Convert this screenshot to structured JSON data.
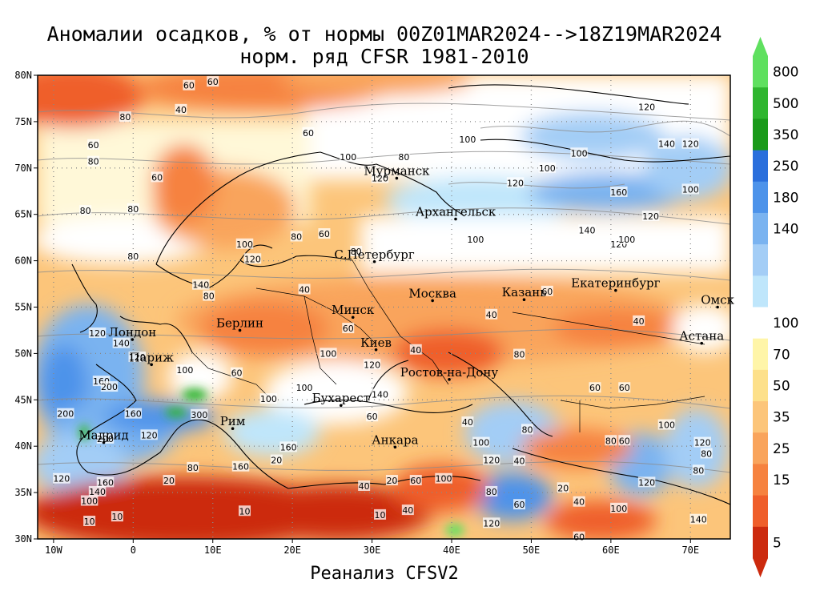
{
  "title": {
    "line1": "Аномалии осадков, % от нормы 00Z01MAR2024-->18Z19MAR2024",
    "line2": "норм. ряд CFSR 1981-2010"
  },
  "footer": "Реанализ CFSV2",
  "axes": {
    "lat_range": [
      30,
      80
    ],
    "lon_range": [
      -12,
      75
    ],
    "lat_ticks": [
      {
        "value": 30,
        "label": "30N"
      },
      {
        "value": 35,
        "label": "35N"
      },
      {
        "value": 40,
        "label": "40N"
      },
      {
        "value": 45,
        "label": "45N"
      },
      {
        "value": 50,
        "label": "50N"
      },
      {
        "value": 55,
        "label": "55N"
      },
      {
        "value": 60,
        "label": "60N"
      },
      {
        "value": 65,
        "label": "65N"
      },
      {
        "value": 70,
        "label": "70N"
      },
      {
        "value": 75,
        "label": "75N"
      },
      {
        "value": 80,
        "label": "80N"
      }
    ],
    "lon_ticks": [
      {
        "value": -10,
        "label": "10W"
      },
      {
        "value": 0,
        "label": "0"
      },
      {
        "value": 10,
        "label": "10E"
      },
      {
        "value": 20,
        "label": "20E"
      },
      {
        "value": 30,
        "label": "30E"
      },
      {
        "value": 40,
        "label": "40E"
      },
      {
        "value": 50,
        "label": "50E"
      },
      {
        "value": 60,
        "label": "60E"
      },
      {
        "value": 70,
        "label": "70E"
      }
    ],
    "grid": true
  },
  "colorbar": {
    "levels": [
      {
        "label": "800",
        "color": "#5fe05f"
      },
      {
        "label": "500",
        "color": "#2fb62f"
      },
      {
        "label": "350",
        "color": "#1a9a1a"
      },
      {
        "label": "250",
        "color": "#2a6fdc"
      },
      {
        "label": "180",
        "color": "#4d93ea"
      },
      {
        "label": "140",
        "color": "#7ab3f0"
      },
      {
        "label": "",
        "color": "#a3cdf6"
      },
      {
        "label": "",
        "color": "#bfe6fb"
      },
      {
        "label": "100",
        "color": "#ffffff"
      },
      {
        "label": "70",
        "color": "#fff5a8"
      },
      {
        "label": "50",
        "color": "#fde08a"
      },
      {
        "label": "35",
        "color": "#fcc57a"
      },
      {
        "label": "25",
        "color": "#f9a45c"
      },
      {
        "label": "15",
        "color": "#f6823f"
      },
      {
        "label": "",
        "color": "#ef5e2a"
      },
      {
        "label": "5",
        "color": "#cc2a0e"
      }
    ]
  },
  "cities": [
    {
      "name": "Мурманск",
      "lon": 33.1,
      "lat": 68.9
    },
    {
      "name": "Архангельск",
      "lon": 40.5,
      "lat": 64.5
    },
    {
      "name": "С.Петербург",
      "lon": 30.3,
      "lat": 59.9
    },
    {
      "name": "Москва",
      "lon": 37.6,
      "lat": 55.7
    },
    {
      "name": "Казань",
      "lon": 49.1,
      "lat": 55.8
    },
    {
      "name": "Екатеринбург",
      "lon": 60.6,
      "lat": 56.8
    },
    {
      "name": "Минск",
      "lon": 27.6,
      "lat": 53.9
    },
    {
      "name": "Киев",
      "lon": 30.5,
      "lat": 50.4
    },
    {
      "name": "Берлин",
      "lon": 13.4,
      "lat": 52.5
    },
    {
      "name": "Лондон",
      "lon": -0.1,
      "lat": 51.5
    },
    {
      "name": "Париж",
      "lon": 2.3,
      "lat": 48.8
    },
    {
      "name": "Мадрид",
      "lon": -3.7,
      "lat": 40.4
    },
    {
      "name": "Рим",
      "lon": 12.5,
      "lat": 41.9
    },
    {
      "name": "Бухарест",
      "lon": 26.1,
      "lat": 44.4
    },
    {
      "name": "Ростов-на-Дону",
      "lon": 39.7,
      "lat": 47.2
    },
    {
      "name": "Анкара",
      "lon": 32.9,
      "lat": 39.9
    },
    {
      "name": "Омск",
      "lon": 73.4,
      "lat": 55.0
    },
    {
      "name": "Астана",
      "lon": 71.4,
      "lat": 51.1
    }
  ],
  "contour_labels": [
    {
      "value": "60",
      "lon": 7,
      "lat": 78.9
    },
    {
      "value": "40",
      "lon": 6,
      "lat": 76.3
    },
    {
      "value": "80",
      "lon": -1,
      "lat": 75.5
    },
    {
      "value": "60",
      "lon": -5,
      "lat": 72.5
    },
    {
      "value": "80",
      "lon": -5,
      "lat": 70.7
    },
    {
      "value": "60",
      "lon": 3,
      "lat": 69
    },
    {
      "value": "80",
      "lon": -6,
      "lat": 65.4
    },
    {
      "value": "80",
      "lon": 0,
      "lat": 65.6
    },
    {
      "value": "60",
      "lon": 10,
      "lat": 79.3
    },
    {
      "value": "60",
      "lon": 22,
      "lat": 73.8
    },
    {
      "value": "100",
      "lon": 27,
      "lat": 71.2
    },
    {
      "value": "80",
      "lon": 34,
      "lat": 71.2
    },
    {
      "value": "120",
      "lon": 31,
      "lat": 68.9
    },
    {
      "value": "100",
      "lon": 42,
      "lat": 73.1
    },
    {
      "value": "100",
      "lon": 52,
      "lat": 70.0
    },
    {
      "value": "120",
      "lon": 48,
      "lat": 68.4
    },
    {
      "value": "100",
      "lon": 56,
      "lat": 71.6
    },
    {
      "value": "120",
      "lon": 64.5,
      "lat": 76.6
    },
    {
      "value": "140",
      "lon": 67,
      "lat": 72.6
    },
    {
      "value": "120",
      "lon": 70,
      "lat": 72.6
    },
    {
      "value": "160",
      "lon": 61,
      "lat": 67.4
    },
    {
      "value": "120",
      "lon": 65,
      "lat": 64.8
    },
    {
      "value": "100",
      "lon": 70,
      "lat": 67.7
    },
    {
      "value": "140",
      "lon": 57,
      "lat": 63.3
    },
    {
      "value": "100",
      "lon": 43,
      "lat": 62.3
    },
    {
      "value": "120",
      "lon": 61,
      "lat": 61.8
    },
    {
      "value": "100",
      "lon": 62,
      "lat": 62.3
    },
    {
      "value": "80",
      "lon": 20.5,
      "lat": 62.6
    },
    {
      "value": "60",
      "lon": 24,
      "lat": 62.9
    },
    {
      "value": "100",
      "lon": 14,
      "lat": 61.8
    },
    {
      "value": "120",
      "lon": 15,
      "lat": 60.2
    },
    {
      "value": "80",
      "lon": 0,
      "lat": 60.5
    },
    {
      "value": "80",
      "lon": 28,
      "lat": 61.0
    },
    {
      "value": "40",
      "lon": 21.5,
      "lat": 56.9
    },
    {
      "value": "140",
      "lon": 8.5,
      "lat": 57.4
    },
    {
      "value": "80",
      "lon": 9.5,
      "lat": 56.2
    },
    {
      "value": "60",
      "lon": 52,
      "lat": 56.7
    },
    {
      "value": "40",
      "lon": 45,
      "lat": 54.2
    },
    {
      "value": "40",
      "lon": 63.5,
      "lat": 53.5
    },
    {
      "value": "60",
      "lon": 27,
      "lat": 52.7
    },
    {
      "value": "40",
      "lon": 35.5,
      "lat": 50.4
    },
    {
      "value": "100",
      "lon": 24.5,
      "lat": 50.0
    },
    {
      "value": "120",
      "lon": 30,
      "lat": 48.8
    },
    {
      "value": "80",
      "lon": 48.5,
      "lat": 49.9
    },
    {
      "value": "60",
      "lon": 58,
      "lat": 46.3
    },
    {
      "value": "60",
      "lon": 61.7,
      "lat": 46.3
    },
    {
      "value": "120",
      "lon": 0.5,
      "lat": 49.6
    },
    {
      "value": "140",
      "lon": -1.5,
      "lat": 51.1
    },
    {
      "value": "120",
      "lon": -4.5,
      "lat": 52.2
    },
    {
      "value": "100",
      "lon": 6.5,
      "lat": 48.2
    },
    {
      "value": "60",
      "lon": 13,
      "lat": 47.9
    },
    {
      "value": "160",
      "lon": -4,
      "lat": 47.0
    },
    {
      "value": "200",
      "lon": -3,
      "lat": 46.4
    },
    {
      "value": "200",
      "lon": -8.5,
      "lat": 43.5
    },
    {
      "value": "160",
      "lon": 0,
      "lat": 43.5
    },
    {
      "value": "300",
      "lon": 8.3,
      "lat": 43.4
    },
    {
      "value": "100",
      "lon": 17,
      "lat": 45.1
    },
    {
      "value": "100",
      "lon": 21.5,
      "lat": 46.3
    },
    {
      "value": "140",
      "lon": 31,
      "lat": 45.6
    },
    {
      "value": "60",
      "lon": 30,
      "lat": 43.2
    },
    {
      "value": "120",
      "lon": 2,
      "lat": 41.2
    },
    {
      "value": "200",
      "lon": -3.5,
      "lat": 40.8
    },
    {
      "value": "160",
      "lon": 19.5,
      "lat": 39.9
    },
    {
      "value": "20",
      "lon": 18,
      "lat": 38.5
    },
    {
      "value": "160",
      "lon": 13.5,
      "lat": 37.8
    },
    {
      "value": "80",
      "lon": 7.5,
      "lat": 37.7
    },
    {
      "value": "120",
      "lon": -9,
      "lat": 36.5
    },
    {
      "value": "160",
      "lon": -3.5,
      "lat": 36.1
    },
    {
      "value": "20",
      "lon": 4.5,
      "lat": 36.3
    },
    {
      "value": "140",
      "lon": -4.5,
      "lat": 35.1
    },
    {
      "value": "100",
      "lon": -5.5,
      "lat": 34.1
    },
    {
      "value": "40",
      "lon": 29,
      "lat": 35.7
    },
    {
      "value": "20",
      "lon": 32.5,
      "lat": 36.3
    },
    {
      "value": "60",
      "lon": 35.5,
      "lat": 36.3
    },
    {
      "value": "100",
      "lon": 39,
      "lat": 36.5
    },
    {
      "value": "40",
      "lon": 42,
      "lat": 42.6
    },
    {
      "value": "100",
      "lon": 43.7,
      "lat": 40.4
    },
    {
      "value": "120",
      "lon": 45,
      "lat": 38.5
    },
    {
      "value": "40",
      "lon": 48.5,
      "lat": 38.4
    },
    {
      "value": "80",
      "lon": 49.5,
      "lat": 41.8
    },
    {
      "value": "80",
      "lon": 45,
      "lat": 35.1
    },
    {
      "value": "60",
      "lon": 48.5,
      "lat": 33.7
    },
    {
      "value": "120",
      "lon": 45,
      "lat": 31.7
    },
    {
      "value": "20",
      "lon": 54,
      "lat": 35.5
    },
    {
      "value": "40",
      "lon": 56,
      "lat": 34.0
    },
    {
      "value": "100",
      "lon": 61,
      "lat": 33.3
    },
    {
      "value": "60",
      "lon": 56,
      "lat": 30.2
    },
    {
      "value": "80",
      "lon": 60,
      "lat": 40.6
    },
    {
      "value": "60",
      "lon": 61.7,
      "lat": 40.6
    },
    {
      "value": "120",
      "lon": 64.5,
      "lat": 36.1
    },
    {
      "value": "100",
      "lon": 67,
      "lat": 42.3
    },
    {
      "value": "80",
      "lon": 71,
      "lat": 37.4
    },
    {
      "value": "80",
      "lon": 72,
      "lat": 39.2
    },
    {
      "value": "120",
      "lon": 71.5,
      "lat": 40.4
    },
    {
      "value": "140",
      "lon": 71,
      "lat": 32.1
    },
    {
      "value": "10",
      "lon": -5.5,
      "lat": 31.9
    },
    {
      "value": "10",
      "lon": -2,
      "lat": 32.4
    },
    {
      "value": "10",
      "lon": 14,
      "lat": 33.0
    },
    {
      "value": "10",
      "lon": 31,
      "lat": 32.6
    },
    {
      "value": "40",
      "lon": 34.5,
      "lat": 33.1
    }
  ]
}
